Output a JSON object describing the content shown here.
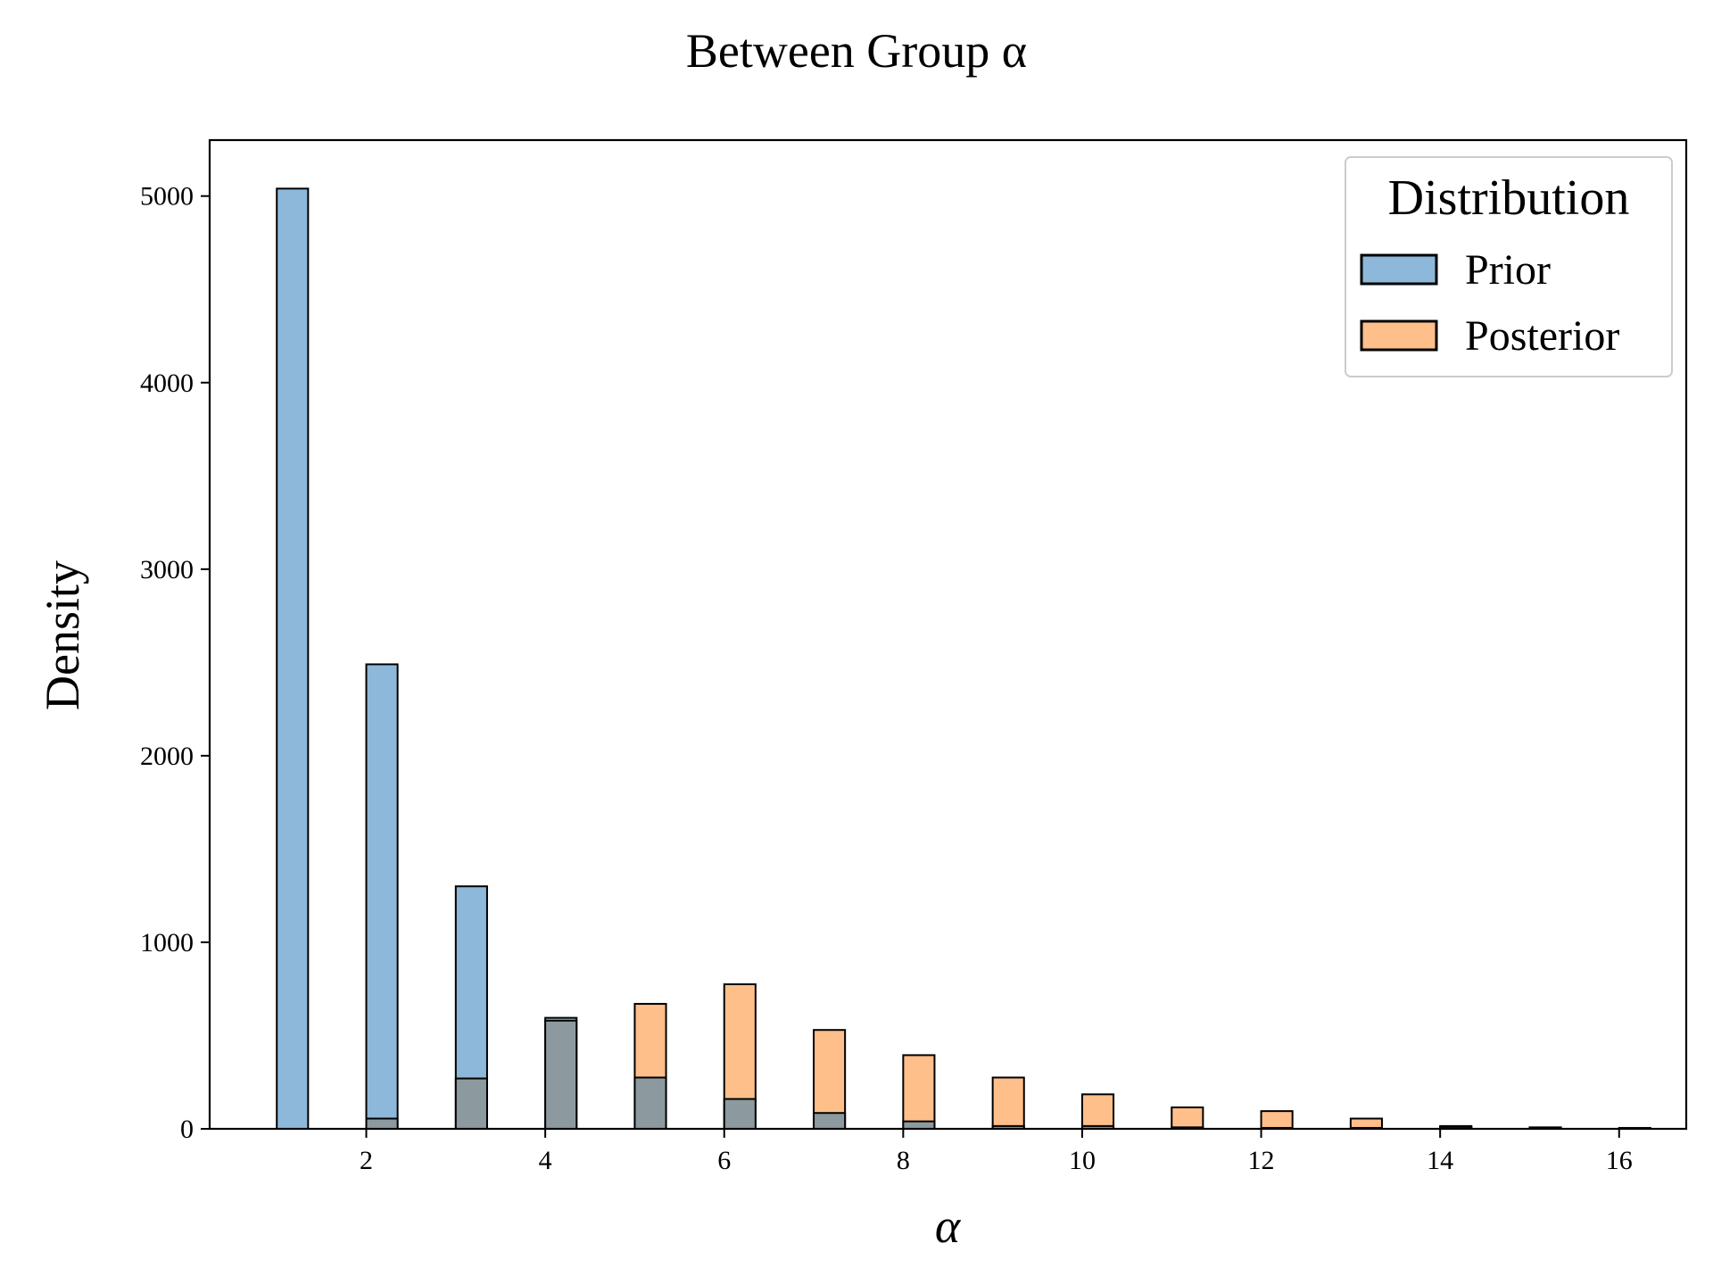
{
  "chart_data": {
    "type": "bar",
    "title": "Between Group α",
    "xlabel": "α",
    "ylabel": "Density",
    "xlim": [
      0.25,
      16.75
    ],
    "ylim": [
      0,
      5300
    ],
    "x_ticks": [
      2,
      4,
      6,
      8,
      10,
      12,
      14,
      16
    ],
    "y_ticks": [
      0,
      1000,
      2000,
      3000,
      4000,
      5000
    ],
    "bin_width": 0.35,
    "grid": false,
    "legend": {
      "title": "Distribution",
      "placement": "top-right"
    },
    "series": [
      {
        "name": "Prior",
        "color": "#8db8da",
        "x": [
          1,
          2,
          3,
          4,
          5,
          6,
          7,
          8,
          9,
          10,
          11,
          12,
          13,
          14,
          15,
          16
        ],
        "values": [
          5040,
          2490,
          1300,
          595,
          275,
          160,
          85,
          40,
          15,
          15,
          8,
          5,
          5,
          15,
          8,
          5
        ]
      },
      {
        "name": "Posterior",
        "color": "#ffbf8a",
        "x": [
          1,
          2,
          3,
          4,
          5,
          6,
          7,
          8,
          9,
          10,
          11,
          12,
          13,
          14,
          15,
          16
        ],
        "values": [
          0,
          55,
          270,
          580,
          670,
          775,
          530,
          395,
          275,
          185,
          115,
          95,
          55,
          10,
          5,
          0
        ]
      }
    ],
    "overlap_color": "#8c9a9f"
  }
}
